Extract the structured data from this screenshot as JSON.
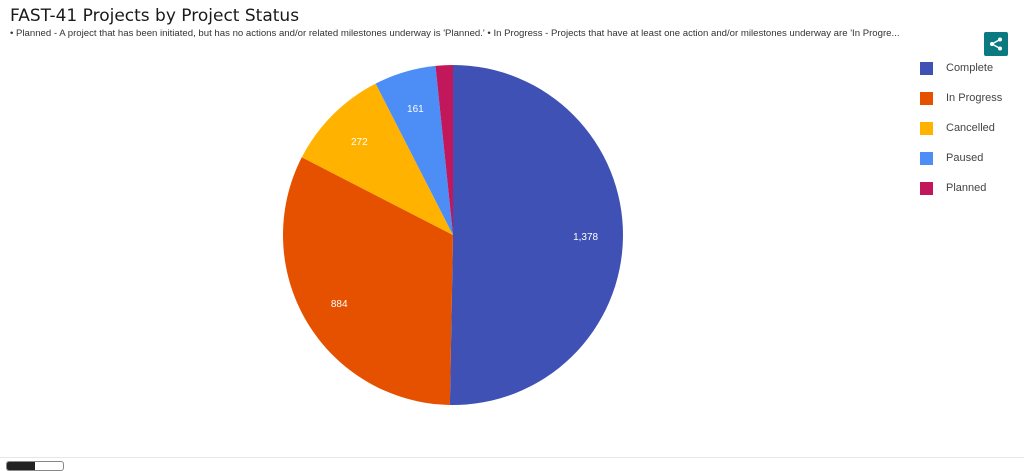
{
  "header": {
    "title": "FAST-41 Projects by Project Status",
    "subtitle": "• Planned - A project that has been initiated, but has no actions and/or related milestones underway is 'Planned.' • In Progress - Projects that have at least one action and/or milestones underway are 'In Progre..."
  },
  "share": {
    "icon": "share-icon",
    "color": "#0a7a80"
  },
  "chart_data": {
    "type": "pie",
    "title": "FAST-41 Projects by Project Status",
    "legend_position": "right",
    "slices": [
      {
        "label": "Complete",
        "value": 1378,
        "display": "1,378",
        "color": "#3f51b5"
      },
      {
        "label": "In Progress",
        "value": 884,
        "display": "884",
        "color": "#e65100"
      },
      {
        "label": "Cancelled",
        "value": 272,
        "display": "272",
        "color": "#ffb300"
      },
      {
        "label": "Paused",
        "value": 161,
        "display": "161",
        "color": "#4c8df6"
      },
      {
        "label": "Planned",
        "value": 45,
        "display": "",
        "color": "#c2185b"
      }
    ]
  }
}
